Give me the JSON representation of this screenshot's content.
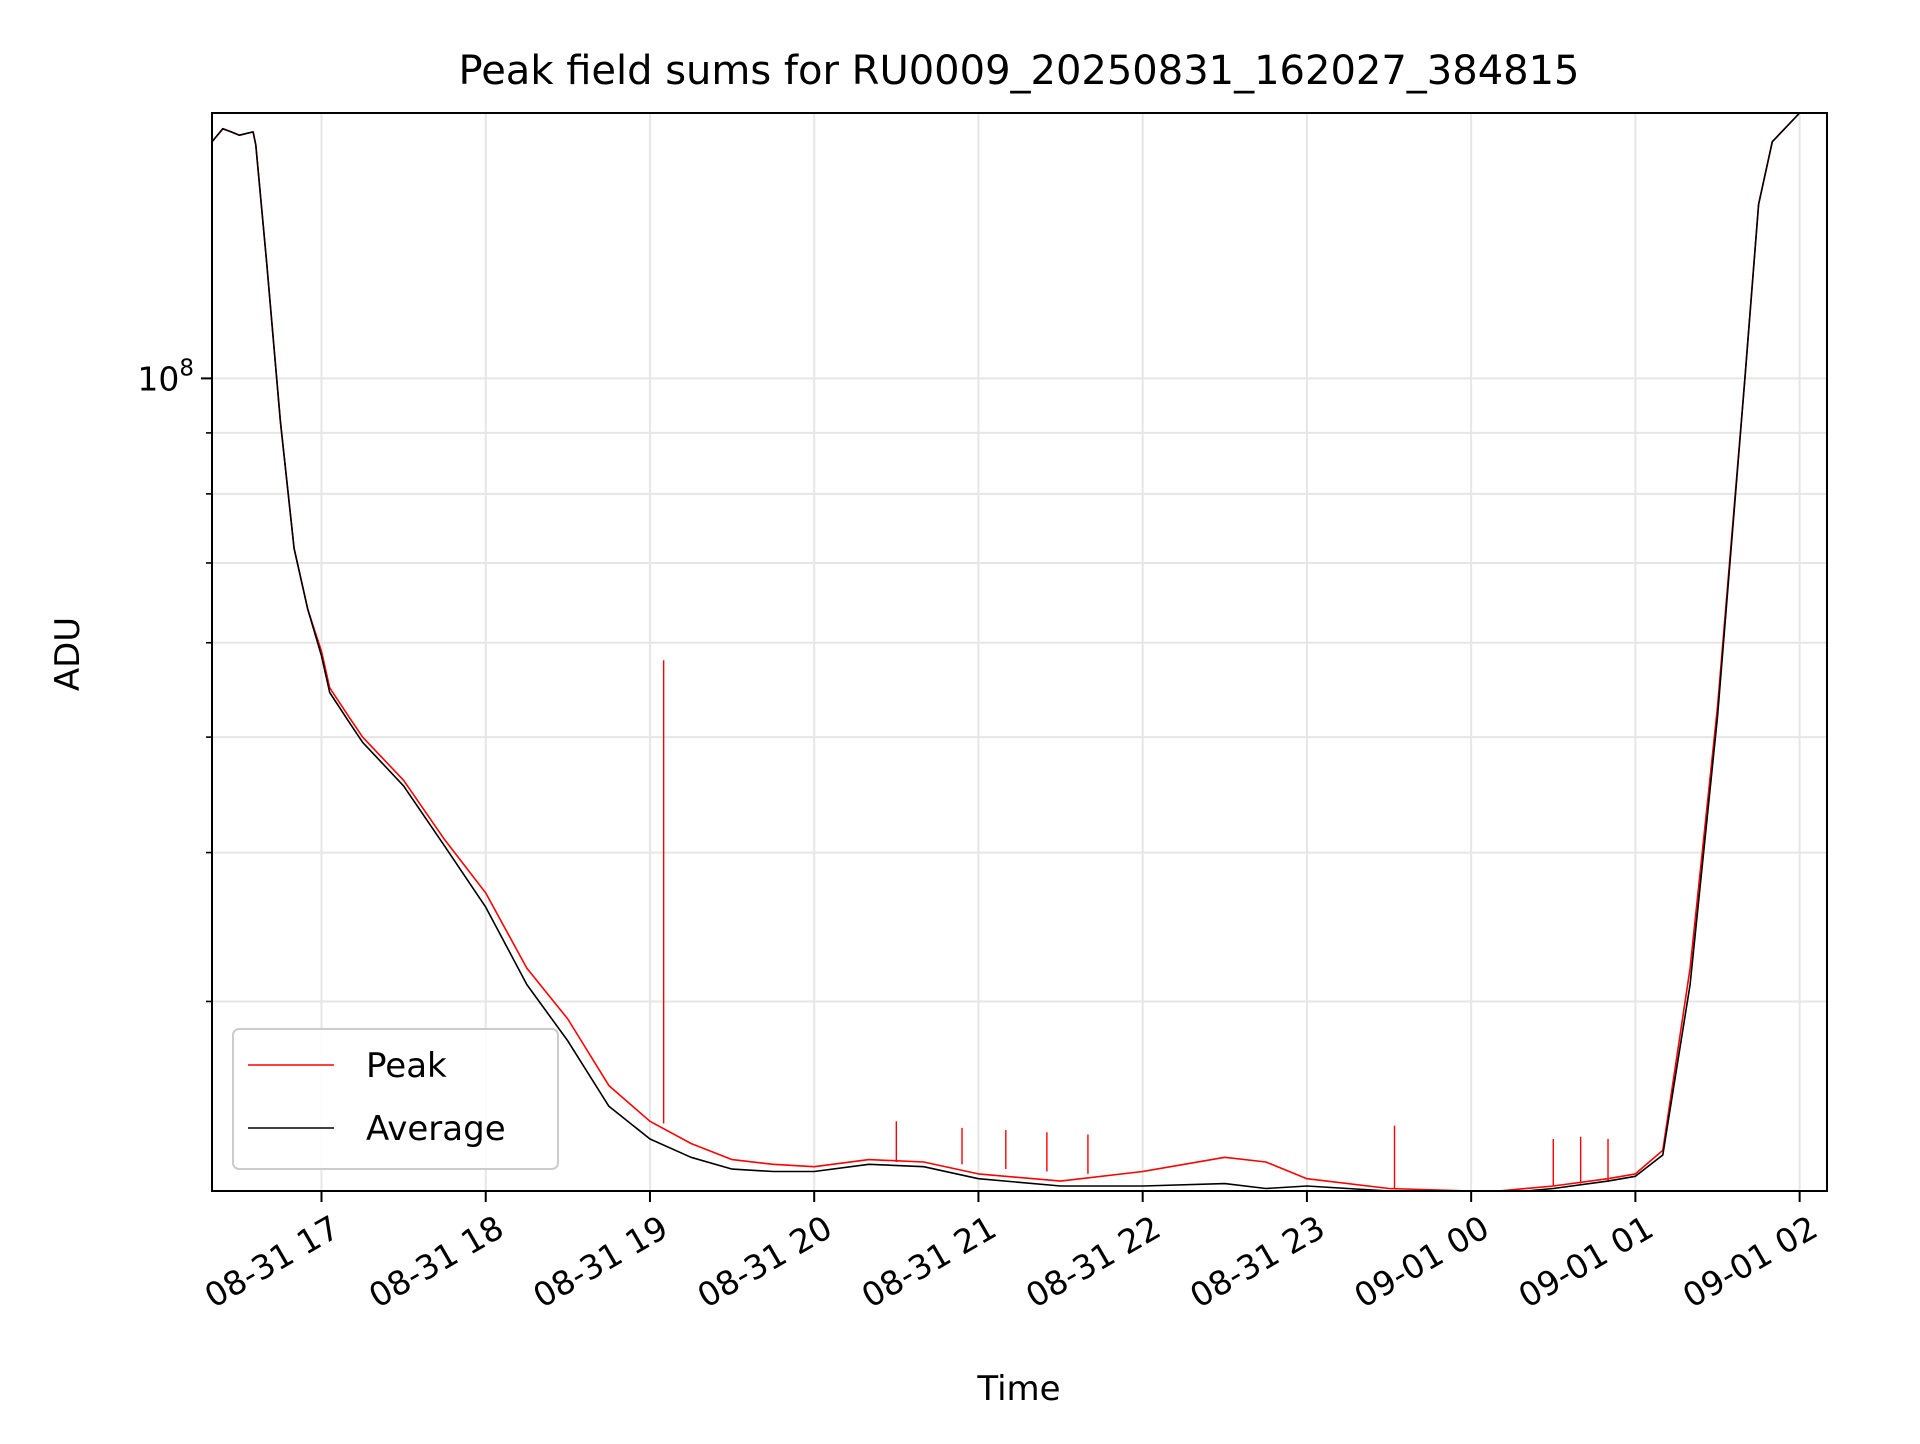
{
  "chart_data": {
    "type": "line",
    "title": "Peak field sums for RU0009_20250831_162027_384815",
    "xlabel": "Time",
    "ylabel": "ADU",
    "y_scale": "log",
    "ylim": [
      20800000,
      167000000
    ],
    "xlim": [
      "2025-08-31 16:20",
      "2025-09-01 02:10"
    ],
    "grid": true,
    "legend": {
      "placement": "lower-left",
      "entries": [
        "Peak",
        "Average"
      ]
    },
    "x_ticks": [
      {
        "value": "2025-08-31 17:00",
        "label": "08-31 17"
      },
      {
        "value": "2025-08-31 18:00",
        "label": "08-31 18"
      },
      {
        "value": "2025-08-31 19:00",
        "label": "08-31 19"
      },
      {
        "value": "2025-08-31 20:00",
        "label": "08-31 20"
      },
      {
        "value": "2025-08-31 21:00",
        "label": "08-31 21"
      },
      {
        "value": "2025-08-31 22:00",
        "label": "08-31 22"
      },
      {
        "value": "2025-08-31 23:00",
        "label": "08-31 23"
      },
      {
        "value": "2025-09-01 00:00",
        "label": "09-01 00"
      },
      {
        "value": "2025-09-01 01:00",
        "label": "09-01 01"
      },
      {
        "value": "2025-09-01 02:00",
        "label": "09-01 02"
      }
    ],
    "y_ticks": [
      {
        "value": 100000000,
        "label_base": "10",
        "label_exp": "8"
      }
    ],
    "y_minor_ticks": [
      30000000,
      40000000,
      50000000,
      60000000,
      70000000,
      80000000,
      90000000,
      200000000
    ],
    "series": [
      {
        "name": "Peak",
        "color": "#ff0000",
        "x": [
          "2025-08-31 16:20",
          "2025-08-31 16:24",
          "2025-08-31 16:27",
          "2025-08-31 16:30",
          "2025-08-31 16:35",
          "2025-08-31 16:36",
          "2025-08-31 16:40",
          "2025-08-31 16:45",
          "2025-08-31 16:50",
          "2025-08-31 16:55",
          "2025-08-31 17:00",
          "2025-08-31 17:03",
          "2025-08-31 17:10",
          "2025-08-31 17:15",
          "2025-08-31 17:30",
          "2025-08-31 17:45",
          "2025-08-31 18:00",
          "2025-08-31 18:15",
          "2025-08-31 18:30",
          "2025-08-31 18:45",
          "2025-08-31 19:00",
          "2025-08-31 19:15",
          "2025-08-31 19:30",
          "2025-08-31 19:45",
          "2025-08-31 20:00",
          "2025-08-31 20:20",
          "2025-08-31 20:40",
          "2025-08-31 21:00",
          "2025-08-31 21:30",
          "2025-08-31 22:00",
          "2025-08-31 22:30",
          "2025-08-31 22:45",
          "2025-08-31 23:00",
          "2025-08-31 23:30",
          "2025-09-01 00:00",
          "2025-09-01 00:10",
          "2025-09-01 00:30",
          "2025-09-01 00:50",
          "2025-09-01 01:00",
          "2025-09-01 01:10",
          "2025-09-01 01:20",
          "2025-09-01 01:30",
          "2025-09-01 01:40",
          "2025-09-01 01:45",
          "2025-09-01 01:50",
          "2025-09-01 02:00"
        ],
        "values": [
          158000000,
          162000000,
          161000000,
          160000000,
          161000000,
          157000000,
          125000000,
          92000000,
          72000000,
          64000000,
          59000000,
          55000000,
          52000000,
          50000000,
          46000000,
          41000000,
          37000000,
          32000000,
          29000000,
          25500000,
          23800000,
          22800000,
          22100000,
          21900000,
          21800000,
          22100000,
          22000000,
          21500000,
          21200000,
          21600000,
          22200000,
          22000000,
          21300000,
          20900000,
          20800000,
          20800000,
          21000000,
          21300000,
          21500000,
          22500000,
          32000000,
          53000000,
          100000000,
          140000000,
          158000000,
          167000000
        ],
        "spikes": [
          {
            "x": "2025-08-31 19:05",
            "base": 23700000,
            "peak": 58000000
          },
          {
            "x": "2025-08-31 20:30",
            "base": 22000000,
            "peak": 23800000
          },
          {
            "x": "2025-08-31 20:54",
            "base": 21900000,
            "peak": 23500000
          },
          {
            "x": "2025-08-31 21:10",
            "base": 21700000,
            "peak": 23400000
          },
          {
            "x": "2025-08-31 21:25",
            "base": 21600000,
            "peak": 23300000
          },
          {
            "x": "2025-08-31 21:40",
            "base": 21500000,
            "peak": 23200000
          },
          {
            "x": "2025-08-31 23:32",
            "base": 20900000,
            "peak": 23600000
          },
          {
            "x": "2025-09-01 00:30",
            "base": 21000000,
            "peak": 23000000
          },
          {
            "x": "2025-09-01 00:40",
            "base": 21100000,
            "peak": 23100000
          },
          {
            "x": "2025-09-01 00:50",
            "base": 21200000,
            "peak": 23000000
          }
        ]
      },
      {
        "name": "Average",
        "color": "#000000",
        "x": [
          "2025-08-31 16:20",
          "2025-08-31 16:24",
          "2025-08-31 16:27",
          "2025-08-31 16:30",
          "2025-08-31 16:35",
          "2025-08-31 16:36",
          "2025-08-31 16:40",
          "2025-08-31 16:45",
          "2025-08-31 16:50",
          "2025-08-31 16:55",
          "2025-08-31 17:00",
          "2025-08-31 17:03",
          "2025-08-31 17:10",
          "2025-08-31 17:15",
          "2025-08-31 17:30",
          "2025-08-31 17:45",
          "2025-08-31 18:00",
          "2025-08-31 18:15",
          "2025-08-31 18:30",
          "2025-08-31 18:45",
          "2025-08-31 19:00",
          "2025-08-31 19:15",
          "2025-08-31 19:30",
          "2025-08-31 19:45",
          "2025-08-31 20:00",
          "2025-08-31 20:20",
          "2025-08-31 20:40",
          "2025-08-31 21:00",
          "2025-08-31 21:30",
          "2025-08-31 22:00",
          "2025-08-31 22:30",
          "2025-08-31 22:45",
          "2025-08-31 23:00",
          "2025-08-31 23:30",
          "2025-09-01 00:00",
          "2025-09-01 00:10",
          "2025-09-01 00:30",
          "2025-09-01 00:50",
          "2025-09-01 01:00",
          "2025-09-01 01:10",
          "2025-09-01 01:20",
          "2025-09-01 01:30",
          "2025-09-01 01:40",
          "2025-09-01 01:45",
          "2025-09-01 01:50",
          "2025-09-01 02:00"
        ],
        "values": [
          158000000,
          162000000,
          161000000,
          160000000,
          161000000,
          157000000,
          125000000,
          92000000,
          72000000,
          64000000,
          58500000,
          54500000,
          51500000,
          49500000,
          45500000,
          40500000,
          36000000,
          31000000,
          27800000,
          24500000,
          23000000,
          22200000,
          21700000,
          21600000,
          21600000,
          21900000,
          21800000,
          21300000,
          21000000,
          21000000,
          21100000,
          20900000,
          21000000,
          20800000,
          20700000,
          20700000,
          20900000,
          21200000,
          21400000,
          22300000,
          31000000,
          52000000,
          100000000,
          140000000,
          158000000,
          167000000
        ]
      }
    ]
  }
}
